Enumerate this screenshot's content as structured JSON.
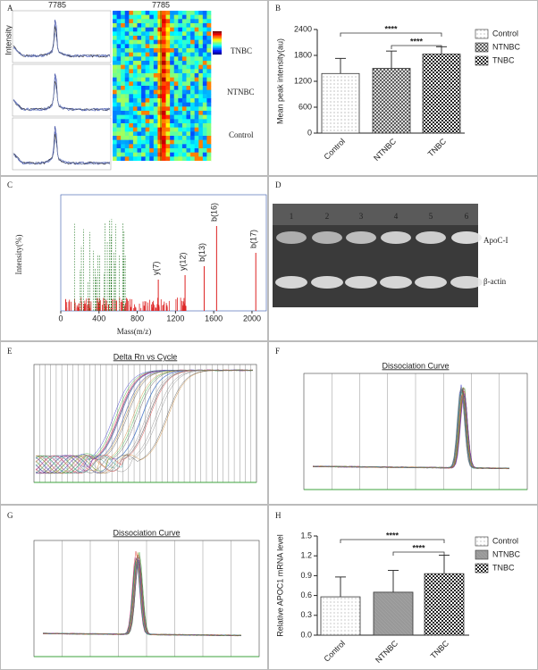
{
  "figure": {
    "panel_labels": [
      "A",
      "B",
      "C",
      "D",
      "E",
      "F",
      "G",
      "H"
    ]
  },
  "spectra_panel": {
    "peak_labels": [
      "7785",
      "7785"
    ],
    "groups": [
      "TNBC",
      "NTNBC",
      "Control"
    ],
    "y_label": "Intensity"
  },
  "chart_data": [
    {
      "type": "bar",
      "y_label": "Mean peak intensity(au)",
      "categories": [
        "Control",
        "NTNBC",
        "TNBC"
      ],
      "values": [
        1380,
        1500,
        1830
      ],
      "errors": [
        350,
        400,
        170
      ],
      "colors": [
        "#555555",
        "#444444",
        "#222222"
      ],
      "patterns": [
        "dots",
        "crosshatch",
        "checker"
      ],
      "ylim": [
        0,
        2400
      ],
      "yticks": [
        0,
        600,
        1200,
        1800,
        2400
      ],
      "annotations": [
        "****",
        "****"
      ],
      "legend": "upper right"
    },
    {
      "type": "bar",
      "y_label": "Relative APOC1 mRNA level",
      "categories": [
        "Control",
        "NTNBC",
        "TNBC"
      ],
      "values": [
        0.58,
        0.65,
        0.93
      ],
      "errors": [
        0.3,
        0.33,
        0.28
      ],
      "colors": [
        "#666666",
        "#777777",
        "#222222"
      ],
      "patterns": [
        "dots",
        "dense",
        "checker"
      ],
      "ylim": [
        0,
        1.5
      ],
      "yticks": [
        {
          "value": 0,
          "label": "0.0"
        },
        0.3,
        0.6,
        0.9,
        1.2,
        1.5
      ],
      "annotations": [
        "****",
        "****"
      ],
      "legend": "upper right"
    }
  ],
  "mass_spectrum": {
    "y_label": "Intensity(%)",
    "x_label": "Mass(m/z)",
    "xlim": [
      0,
      2150
    ],
    "xticks": [
      0,
      400,
      800,
      1200,
      1600,
      2000
    ],
    "peak_labels": [
      "y(7)",
      "y(12)",
      "b(13)",
      "b(16)",
      "b(17)"
    ]
  },
  "gel": {
    "lanes": [
      "1",
      "2",
      "3",
      "4",
      "5",
      "6"
    ],
    "bands": [
      "ApoC-I",
      "β-actin"
    ]
  },
  "curves": [
    {
      "title": "Delta Rn vs Cycle"
    },
    {
      "title": "Dissociation Curve"
    },
    {
      "title": "Dissociation Curve"
    }
  ]
}
